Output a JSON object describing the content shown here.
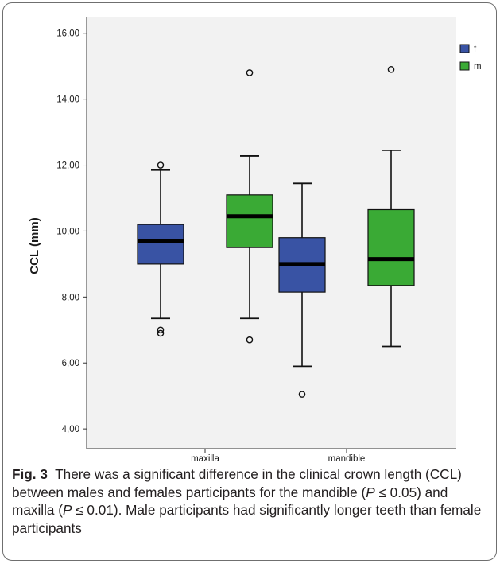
{
  "chart_data": {
    "type": "boxplot",
    "xlabel": "",
    "ylabel": "CCL (mm)",
    "ylim": [
      3.4,
      16.5
    ],
    "yticks": [
      4,
      6,
      8,
      10,
      12,
      14,
      16
    ],
    "ytick_labels": [
      "4,00",
      "6,00",
      "8,00",
      "10,00",
      "12,00",
      "14,00",
      "16,00"
    ],
    "categories": [
      "maxilla",
      "mandible"
    ],
    "legend_position": "top-right",
    "grid": false,
    "series": [
      {
        "name": "f",
        "color": "#3953a4",
        "boxes": [
          {
            "category": "maxilla",
            "whisker_low": 7.35,
            "q1": 9.0,
            "median": 9.7,
            "q3": 10.2,
            "whisker_high": 11.85,
            "outliers": [
              12.0,
              7.0,
              6.9
            ]
          },
          {
            "category": "mandible",
            "whisker_low": 5.9,
            "q1": 8.15,
            "median": 9.0,
            "q3": 9.8,
            "whisker_high": 11.45,
            "outliers": [
              5.05
            ]
          }
        ]
      },
      {
        "name": "m",
        "color": "#3aaa35",
        "boxes": [
          {
            "category": "maxilla",
            "whisker_low": 7.35,
            "q1": 9.5,
            "median": 10.45,
            "q3": 11.1,
            "whisker_high": 12.28,
            "outliers": [
              14.8,
              6.7
            ]
          },
          {
            "category": "mandible",
            "whisker_low": 6.5,
            "q1": 8.35,
            "median": 9.15,
            "q3": 10.65,
            "whisker_high": 12.45,
            "outliers": [
              14.9
            ]
          }
        ]
      }
    ]
  },
  "caption": {
    "label": "Fig. 3",
    "text_1": "There was a significant difference in the clinical crown length (CCL) between males and females participants for the mandible (",
    "p1_var": "P",
    "p1_rest": " ≤ 0.05) and maxilla (",
    "p2_var": "P",
    "p2_rest": " ≤ 0.01). Male participants had significantly longer teeth than female participants"
  }
}
